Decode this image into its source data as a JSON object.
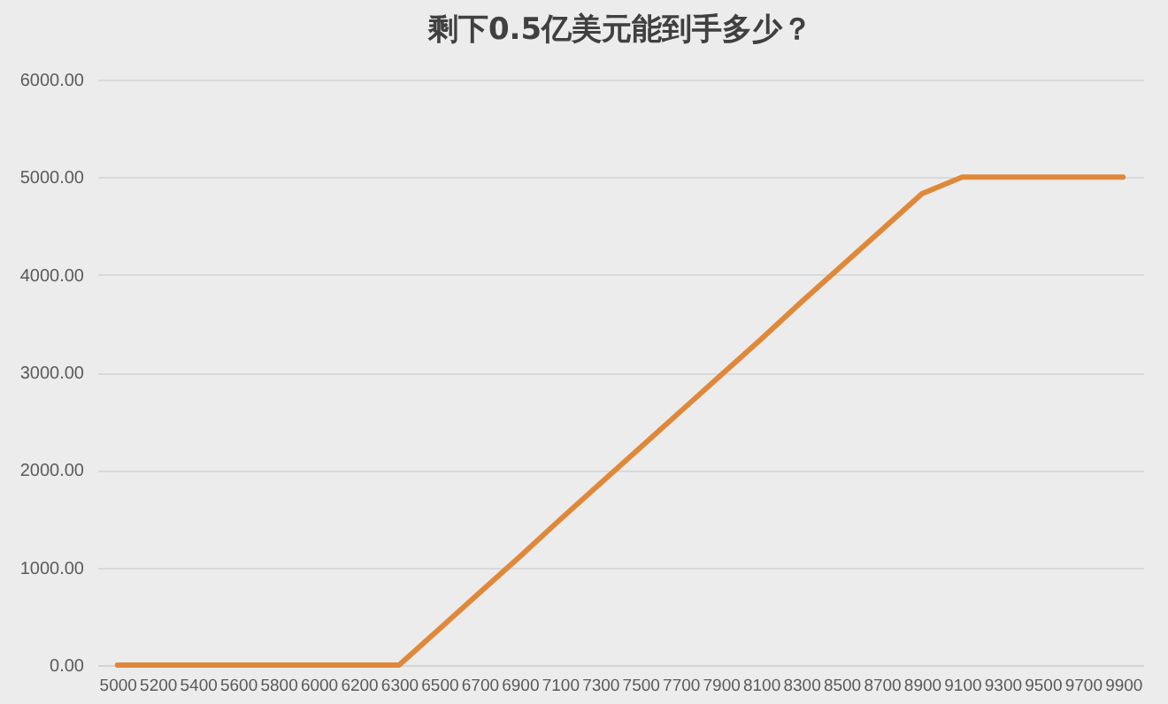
{
  "chart_data": {
    "type": "line",
    "title": "剩下0.5亿美元能到手多少？",
    "categories": [
      "5000",
      "5200",
      "5400",
      "5600",
      "5800",
      "6000",
      "6200",
      "6300",
      "6500",
      "6700",
      "6900",
      "7100",
      "7300",
      "7500",
      "7700",
      "7900",
      "8100",
      "8300",
      "8500",
      "8700",
      "8900",
      "9100",
      "9300",
      "9500",
      "9700",
      "9900"
    ],
    "series": [
      {
        "color": "#e0883a",
        "values": [
          0,
          0,
          0,
          0,
          0,
          0,
          0,
          0,
          370,
          740,
          1110,
          1490,
          1860,
          2230,
          2600,
          2970,
          3340,
          3720,
          4090,
          4460,
          4830,
          5000,
          5000,
          5000,
          5000,
          5000
        ]
      }
    ],
    "ylim": [
      0,
      6000
    ],
    "yticks": [
      {
        "value": 0,
        "label": "0.00"
      },
      {
        "value": 1000,
        "label": "1000.00"
      },
      {
        "value": 2000,
        "label": "2000.00"
      },
      {
        "value": 3000,
        "label": "3000.00"
      },
      {
        "value": 4000,
        "label": "4000.00"
      },
      {
        "value": 5000,
        "label": "5000.00"
      },
      {
        "value": 6000,
        "label": "6000.00"
      }
    ],
    "grid": "y",
    "marker": "none",
    "line_style": "solid"
  }
}
